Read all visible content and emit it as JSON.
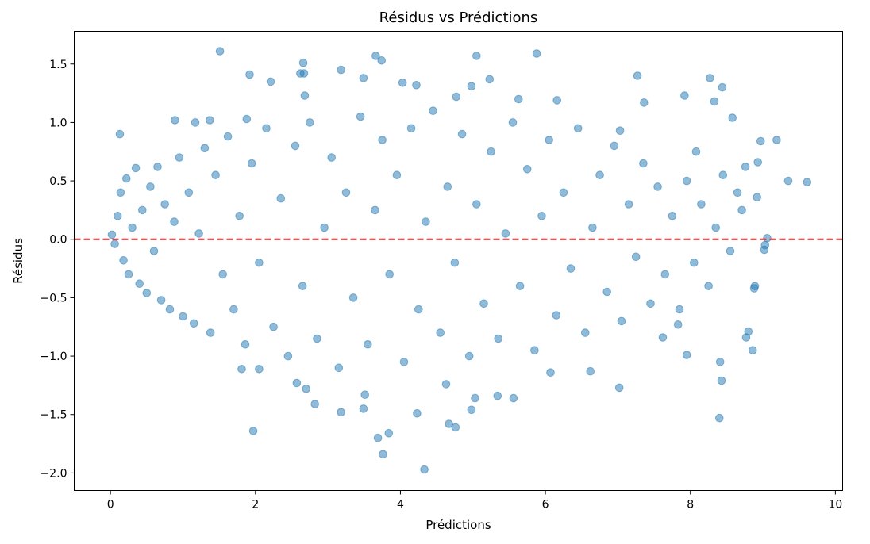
{
  "chart_data": {
    "type": "scatter",
    "title": "Résidus vs Prédictions",
    "xlabel": "Prédictions",
    "ylabel": "Résidus",
    "xlim": [
      -0.5,
      10.1
    ],
    "ylim": [
      -2.15,
      1.78
    ],
    "xticks": [
      0,
      2,
      4,
      6,
      8,
      10
    ],
    "yticks": [
      -2.0,
      -1.5,
      -1.0,
      -0.5,
      0.0,
      0.5,
      1.0,
      1.5
    ],
    "xtick_labels": [
      "0",
      "2",
      "4",
      "6",
      "8",
      "10"
    ],
    "ytick_labels": [
      "−2.0",
      "−1.5",
      "−1.0",
      "−0.5",
      "0.0",
      "0.5",
      "1.0",
      "1.5"
    ],
    "marker_color": "#1f77b4",
    "marker_alpha": 0.5,
    "reference_line": {
      "y": 0,
      "style": "dashed",
      "color": "#d62728"
    },
    "grid": false,
    "legend": "none",
    "points": [
      [
        1.51,
        1.61
      ],
      [
        3.66,
        1.57
      ],
      [
        3.74,
        1.53
      ],
      [
        2.66,
        1.51
      ],
      [
        5.05,
        1.57
      ],
      [
        5.88,
        1.59
      ],
      [
        2.62,
        1.42
      ],
      [
        2.67,
        1.42
      ],
      [
        1.92,
        1.41
      ],
      [
        3.18,
        1.45
      ],
      [
        2.21,
        1.35
      ],
      [
        3.49,
        1.38
      ],
      [
        4.03,
        1.34
      ],
      [
        4.22,
        1.32
      ],
      [
        5.23,
        1.37
      ],
      [
        4.98,
        1.31
      ],
      [
        7.27,
        1.4
      ],
      [
        7.36,
        1.17
      ],
      [
        8.27,
        1.38
      ],
      [
        8.44,
        1.3
      ],
      [
        8.33,
        1.18
      ],
      [
        7.92,
        1.23
      ],
      [
        8.58,
        1.04
      ],
      [
        9.19,
        0.85
      ],
      [
        8.97,
        0.84
      ],
      [
        9.35,
        0.5
      ],
      [
        9.61,
        0.49
      ],
      [
        8.76,
        0.62
      ],
      [
        8.93,
        0.66
      ],
      [
        0.89,
        1.02
      ],
      [
        1.17,
        1.0
      ],
      [
        0.13,
        0.9
      ],
      [
        1.37,
        1.02
      ],
      [
        1.88,
        1.03
      ],
      [
        2.68,
        1.23
      ],
      [
        4.77,
        1.22
      ],
      [
        5.63,
        1.2
      ],
      [
        6.16,
        1.19
      ],
      [
        7.03,
        0.93
      ],
      [
        8.08,
        0.75
      ],
      [
        3.76,
        -1.84
      ],
      [
        4.33,
        -1.97
      ],
      [
        3.69,
        -1.7
      ],
      [
        3.84,
        -1.66
      ],
      [
        1.97,
        -1.64
      ],
      [
        4.67,
        -1.58
      ],
      [
        4.76,
        -1.61
      ],
      [
        4.23,
        -1.49
      ],
      [
        3.18,
        -1.48
      ],
      [
        3.49,
        -1.45
      ],
      [
        4.98,
        -1.46
      ],
      [
        5.56,
        -1.36
      ],
      [
        5.03,
        -1.36
      ],
      [
        5.34,
        -1.34
      ],
      [
        8.4,
        -1.53
      ],
      [
        8.43,
        -1.21
      ],
      [
        8.41,
        -1.05
      ],
      [
        8.86,
        -0.95
      ],
      [
        8.77,
        -0.84
      ],
      [
        8.8,
        -0.79
      ],
      [
        7.02,
        -1.27
      ],
      [
        6.62,
        -1.13
      ],
      [
        6.07,
        -1.14
      ],
      [
        4.63,
        -1.24
      ],
      [
        2.57,
        -1.23
      ],
      [
        2.82,
        -1.41
      ],
      [
        2.7,
        -1.28
      ],
      [
        3.51,
        -1.33
      ],
      [
        2.05,
        -1.11
      ],
      [
        1.81,
        -1.11
      ],
      [
        9.03,
        -0.05
      ],
      [
        9.02,
        -0.09
      ],
      [
        8.89,
        -0.4
      ],
      [
        8.88,
        -0.42
      ],
      [
        9.06,
        0.01
      ],
      [
        8.71,
        0.25
      ],
      [
        8.92,
        0.36
      ],
      [
        7.83,
        -0.73
      ],
      [
        7.62,
        -0.84
      ],
      [
        7.95,
        -0.99
      ],
      [
        0.02,
        0.04
      ],
      [
        0.06,
        -0.04
      ],
      [
        0.1,
        0.2
      ],
      [
        0.14,
        0.4
      ],
      [
        0.18,
        -0.18
      ],
      [
        0.22,
        0.52
      ],
      [
        0.25,
        -0.3
      ],
      [
        0.3,
        0.1
      ],
      [
        0.35,
        0.61
      ],
      [
        0.4,
        -0.38
      ],
      [
        0.44,
        0.25
      ],
      [
        0.5,
        -0.46
      ],
      [
        0.55,
        0.45
      ],
      [
        0.6,
        -0.1
      ],
      [
        0.65,
        0.62
      ],
      [
        0.7,
        -0.52
      ],
      [
        0.75,
        0.3
      ],
      [
        0.82,
        -0.6
      ],
      [
        0.88,
        0.15
      ],
      [
        0.95,
        0.7
      ],
      [
        1.0,
        -0.66
      ],
      [
        1.08,
        0.4
      ],
      [
        1.15,
        -0.72
      ],
      [
        1.22,
        0.05
      ],
      [
        1.3,
        0.78
      ],
      [
        1.38,
        -0.8
      ],
      [
        1.45,
        0.55
      ],
      [
        1.55,
        -0.3
      ],
      [
        1.62,
        0.88
      ],
      [
        1.7,
        -0.6
      ],
      [
        1.78,
        0.2
      ],
      [
        1.86,
        -0.9
      ],
      [
        1.95,
        0.65
      ],
      [
        2.05,
        -0.2
      ],
      [
        2.15,
        0.95
      ],
      [
        2.25,
        -0.75
      ],
      [
        2.35,
        0.35
      ],
      [
        2.45,
        -1.0
      ],
      [
        2.55,
        0.8
      ],
      [
        2.65,
        -0.4
      ],
      [
        2.75,
        1.0
      ],
      [
        2.85,
        -0.85
      ],
      [
        2.95,
        0.1
      ],
      [
        3.05,
        0.7
      ],
      [
        3.15,
        -1.1
      ],
      [
        3.25,
        0.4
      ],
      [
        3.35,
        -0.5
      ],
      [
        3.45,
        1.05
      ],
      [
        3.55,
        -0.9
      ],
      [
        3.65,
        0.25
      ],
      [
        3.75,
        0.85
      ],
      [
        3.85,
        -0.3
      ],
      [
        3.95,
        0.55
      ],
      [
        4.05,
        -1.05
      ],
      [
        4.15,
        0.95
      ],
      [
        4.25,
        -0.6
      ],
      [
        4.35,
        0.15
      ],
      [
        4.45,
        1.1
      ],
      [
        4.55,
        -0.8
      ],
      [
        4.65,
        0.45
      ],
      [
        4.75,
        -0.2
      ],
      [
        4.85,
        0.9
      ],
      [
        4.95,
        -1.0
      ],
      [
        5.05,
        0.3
      ],
      [
        5.15,
        -0.55
      ],
      [
        5.25,
        0.75
      ],
      [
        5.35,
        -0.85
      ],
      [
        5.45,
        0.05
      ],
      [
        5.55,
        1.0
      ],
      [
        5.65,
        -0.4
      ],
      [
        5.75,
        0.6
      ],
      [
        5.85,
        -0.95
      ],
      [
        5.95,
        0.2
      ],
      [
        6.05,
        0.85
      ],
      [
        6.15,
        -0.65
      ],
      [
        6.25,
        0.4
      ],
      [
        6.35,
        -0.25
      ],
      [
        6.45,
        0.95
      ],
      [
        6.55,
        -0.8
      ],
      [
        6.65,
        0.1
      ],
      [
        6.75,
        0.55
      ],
      [
        6.85,
        -0.45
      ],
      [
        6.95,
        0.8
      ],
      [
        7.05,
        -0.7
      ],
      [
        7.15,
        0.3
      ],
      [
        7.25,
        -0.15
      ],
      [
        7.35,
        0.65
      ],
      [
        7.45,
        -0.55
      ],
      [
        7.55,
        0.45
      ],
      [
        7.65,
        -0.3
      ],
      [
        7.75,
        0.2
      ],
      [
        7.85,
        -0.6
      ],
      [
        7.95,
        0.5
      ],
      [
        8.05,
        -0.2
      ],
      [
        8.15,
        0.3
      ],
      [
        8.25,
        -0.4
      ],
      [
        8.35,
        0.1
      ],
      [
        8.45,
        0.55
      ],
      [
        8.55,
        -0.1
      ],
      [
        8.65,
        0.4
      ]
    ]
  }
}
